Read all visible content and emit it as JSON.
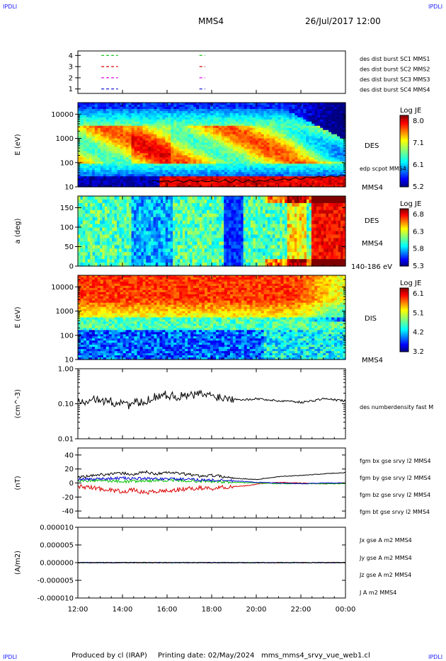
{
  "header": {
    "spacecraft": "MMS4",
    "datetime": "26/Jul/2017 12:00",
    "corner_label": "IPDLI"
  },
  "footer": {
    "produced_by": "Produced by cl (IRAP)",
    "printing_date": "Printing date: 02/May/2024",
    "filename": "mms_mms4_srvy_vue_web1.cl"
  },
  "colors": {
    "red": "#d80000",
    "green": "#00c000",
    "blue": "#0000d0",
    "magenta": "#e000e0",
    "black": "#000000"
  },
  "chart_data": {
    "type": "multi-panel time series",
    "x_ticks": [
      "12:00",
      "14:00",
      "16:00",
      "18:00",
      "20:00",
      "22:00",
      "00:00"
    ],
    "x_range_hours": [
      12,
      24
    ],
    "panels": [
      {
        "id": "burst",
        "y_ticks": [
          "1",
          "2",
          "3",
          "4"
        ],
        "ylim": [
          0.6,
          4.4
        ],
        "legend": [
          {
            "text": "des dist burst SC1 MMS1",
            "color": "#0000d0"
          },
          {
            "text": "des dist burst SC2 MMS2",
            "color": "#e000e0"
          },
          {
            "text": "des dist burst SC3 MMS3",
            "color": "#d80000"
          },
          {
            "text": "des dist burst SC4 MMS4",
            "color": "#00c000"
          }
        ],
        "intervals": [
          {
            "level": 1,
            "color": "#0000d0",
            "segments": [
              [
                13.05,
                13.8
              ],
              [
                17.45,
                17.7
              ]
            ]
          },
          {
            "level": 2,
            "color": "#e000e0",
            "segments": [
              [
                13.05,
                13.8
              ],
              [
                17.45,
                17.7
              ]
            ]
          },
          {
            "level": 3,
            "color": "#d80000",
            "segments": [
              [
                13.05,
                13.8
              ],
              [
                17.45,
                17.7
              ]
            ]
          },
          {
            "level": 4,
            "color": "#00c000",
            "segments": [
              [
                13.05,
                13.8
              ],
              [
                17.45,
                17.7
              ]
            ]
          }
        ]
      },
      {
        "id": "des-energy",
        "ylabel": "E (eV)",
        "y_ticks": [
          "10",
          "100",
          "1000",
          "10000"
        ],
        "log": true,
        "ylim": [
          10,
          30000
        ],
        "right_label": "DES",
        "right_sublabel": "MMS4",
        "overlay_label": "edp scpot MMS4",
        "colorbar": {
          "title": "Log JE",
          "ticks": [
            "8.0",
            "7.1",
            "6.1",
            "5.2"
          ],
          "range": [
            5.2,
            8.0
          ]
        }
      },
      {
        "id": "des-pitch",
        "ylabel": "a (deg)",
        "y_ticks": [
          "0",
          "50",
          "100",
          "150"
        ],
        "ylim": [
          0,
          180
        ],
        "right_label": "DES",
        "right_sublabel": "MMS4",
        "energy_label": "140-186 eV",
        "colorbar": {
          "title": "Log JE",
          "ticks": [
            "6.8",
            "6.3",
            "5.8",
            "5.3"
          ],
          "range": [
            5.3,
            6.8
          ]
        }
      },
      {
        "id": "dis-energy",
        "ylabel": "E (eV)",
        "y_ticks": [
          "10",
          "100",
          "1000",
          "10000"
        ],
        "log": true,
        "ylim": [
          10,
          30000
        ],
        "right_label": "DIS",
        "right_sublabel": "MMS4",
        "colorbar": {
          "title": "Log JE",
          "ticks": [
            "6.1",
            "5.1",
            "4.2",
            "3.2"
          ],
          "range": [
            3.2,
            6.1
          ]
        }
      },
      {
        "id": "density",
        "ylabel": "(cm^-3)",
        "y_ticks": [
          "0.01",
          "0.10",
          "1.00"
        ],
        "log": true,
        "ylim": [
          0.01,
          1.0
        ],
        "series": [
          {
            "name": "des numberdensity fast M",
            "color": "#000000",
            "x": [
              12.0,
              12.3,
              12.6,
              13.0,
              13.3,
              13.6,
              14.0,
              14.3,
              14.6,
              15.0,
              15.3,
              15.6,
              16.0,
              16.5,
              17.0,
              17.5,
              18.0,
              18.5,
              19.0,
              19.5,
              20.0,
              20.5,
              21.0,
              21.5,
              22.0,
              22.5,
              23.0,
              23.5,
              24.0
            ],
            "values": [
              0.14,
              0.12,
              0.15,
              0.11,
              0.13,
              0.1,
              0.12,
              0.09,
              0.11,
              0.1,
              0.15,
              0.17,
              0.18,
              0.16,
              0.17,
              0.19,
              0.17,
              0.15,
              0.14,
              0.13,
              0.14,
              0.13,
              0.12,
              0.12,
              0.11,
              0.12,
              0.14,
              0.13,
              0.12
            ]
          }
        ]
      },
      {
        "id": "magnetic-field",
        "ylabel": "(nT)",
        "y_ticks": [
          "-40",
          "-20",
          "0",
          "20",
          "40"
        ],
        "ylim": [
          -50,
          50
        ],
        "series": [
          {
            "name": "fgm bx gse srvy l2 MMS4",
            "color": "#d80000",
            "x": [
              12.0,
              12.5,
              13.0,
              13.5,
              14.0,
              14.5,
              15.0,
              15.5,
              16.0,
              16.5,
              17.0,
              17.5,
              18.0,
              18.5,
              19.0,
              19.5,
              20.0,
              20.5,
              21.0,
              22.0,
              23.0,
              24.0
            ],
            "values": [
              -5,
              -6,
              -8,
              -10,
              -12,
              -10,
              -14,
              -12,
              -11,
              -10,
              -8,
              -7,
              -8,
              -6,
              -5,
              -4,
              -2,
              0,
              1,
              0,
              -1,
              0
            ]
          },
          {
            "name": "fgm by gse srvy l2 MMS4",
            "color": "#00c000",
            "x": [
              12.0,
              13.0,
              14.0,
              15.0,
              16.0,
              17.0,
              18.0,
              19.0,
              20.0,
              21.0,
              22.0,
              23.0,
              24.0
            ],
            "values": [
              3,
              4,
              2,
              3,
              4,
              3,
              2,
              1,
              0,
              -1,
              -1,
              -1,
              -1
            ]
          },
          {
            "name": "fgm bz gse srvy l2 MMS4",
            "color": "#0000d0",
            "x": [
              12.0,
              13.0,
              14.0,
              15.0,
              16.0,
              17.0,
              18.0,
              19.0,
              20.0,
              21.0,
              22.0,
              23.0,
              24.0
            ],
            "values": [
              5,
              6,
              7,
              6,
              6,
              5,
              4,
              3,
              1,
              0,
              -1,
              0,
              0
            ]
          },
          {
            "name": "fgm bt gse srvy l2 MMS4",
            "color": "#000000",
            "x": [
              12.0,
              12.5,
              13.0,
              13.5,
              14.0,
              14.5,
              15.0,
              15.5,
              16.0,
              16.5,
              17.0,
              17.5,
              18.0,
              18.5,
              19.0,
              19.5,
              20.0,
              20.5,
              21.0,
              21.5,
              22.0,
              22.5,
              23.0,
              23.5,
              24.0
            ],
            "values": [
              8,
              10,
              12,
              13,
              14,
              12,
              16,
              13,
              15,
              14,
              12,
              10,
              11,
              9,
              7,
              6,
              5,
              7,
              9,
              10,
              11,
              12,
              13,
              14,
              15
            ]
          }
        ]
      },
      {
        "id": "current",
        "ylabel": "(A/m2)",
        "y_ticks": [
          "-0.000010",
          "-0.000005",
          "0.000000",
          "0.000005",
          "0.000010"
        ],
        "ylim": [
          -1e-05,
          1e-05
        ],
        "series": [
          {
            "name": "Jx gse A m2 MMS4",
            "color": "#d80000",
            "x": [
              12,
              24
            ],
            "values": [
              0,
              0
            ]
          },
          {
            "name": "Jy gse A m2 MMS4",
            "color": "#00c000",
            "x": [
              12,
              24
            ],
            "values": [
              0,
              0
            ]
          },
          {
            "name": "Jz gse A m2 MMS4",
            "color": "#0000d0",
            "x": [
              12,
              24
            ],
            "values": [
              0,
              0
            ]
          },
          {
            "name": "J A m2 MMS4",
            "color": "#000000",
            "x": [
              12,
              24
            ],
            "values": [
              0,
              0
            ]
          }
        ]
      }
    ]
  }
}
